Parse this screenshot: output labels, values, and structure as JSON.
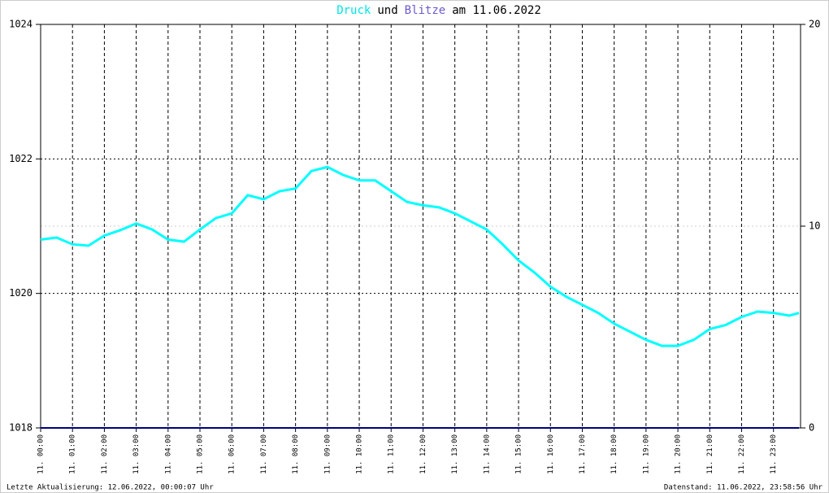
{
  "chart_data": {
    "type": "line",
    "title_parts": [
      {
        "text": "Druck",
        "color": "#00e5e5"
      },
      {
        "text": "und",
        "color": "#000000"
      },
      {
        "text": "Blitze",
        "color": "#6a5acd"
      },
      {
        "text": "am 11.06.2022",
        "color": "#000000"
      }
    ],
    "x": [
      0,
      0.5,
      1,
      1.5,
      2,
      2.5,
      3,
      3.5,
      4,
      4.5,
      5,
      5.5,
      6,
      6.5,
      7,
      7.5,
      8,
      8.5,
      9,
      9.5,
      10,
      10.5,
      11,
      11.5,
      12,
      12.5,
      13,
      13.5,
      14,
      14.5,
      15,
      15.5,
      16,
      16.5,
      17,
      17.5,
      18,
      18.5,
      19,
      19.5,
      20,
      20.5,
      21,
      21.5,
      22,
      22.5,
      23,
      23.5,
      23.8
    ],
    "series": [
      {
        "name": "Druck",
        "color": "#00ffff",
        "axis": "y",
        "values": [
          1020.8,
          1020.83,
          1020.73,
          1020.71,
          1020.86,
          1020.94,
          1021.04,
          1020.95,
          1020.8,
          1020.77,
          1020.95,
          1021.12,
          1021.19,
          1021.46,
          1021.4,
          1021.52,
          1021.56,
          1021.82,
          1021.88,
          1021.76,
          1021.68,
          1021.68,
          1021.52,
          1021.36,
          1021.31,
          1021.28,
          1021.19,
          1021.07,
          1020.95,
          1020.73,
          1020.49,
          1020.31,
          1020.1,
          1019.95,
          1019.83,
          1019.71,
          1019.55,
          1019.43,
          1019.31,
          1019.22,
          1019.22,
          1019.31,
          1019.47,
          1019.53,
          1019.65,
          1019.73,
          1019.71,
          1019.67,
          1019.71
        ]
      },
      {
        "name": "Blitze",
        "color": "#000080",
        "axis": "y2",
        "values": [
          0,
          0,
          0,
          0,
          0,
          0,
          0,
          0,
          0,
          0,
          0,
          0,
          0,
          0,
          0,
          0,
          0,
          0,
          0,
          0,
          0,
          0,
          0,
          0,
          0,
          0,
          0,
          0,
          0,
          0,
          0,
          0,
          0,
          0,
          0,
          0,
          0,
          0,
          0,
          0,
          0,
          0,
          0,
          0,
          0,
          0,
          0,
          0,
          0
        ]
      }
    ],
    "xlim": [
      0,
      23.85
    ],
    "xticks": [
      {
        "value": 0,
        "label": "11. 00:00"
      },
      {
        "value": 1,
        "label": "11. 01:00"
      },
      {
        "value": 2,
        "label": "11. 02:00"
      },
      {
        "value": 3,
        "label": "11. 03:00"
      },
      {
        "value": 4,
        "label": "11. 04:00"
      },
      {
        "value": 5,
        "label": "11. 05:00"
      },
      {
        "value": 6,
        "label": "11. 06:00"
      },
      {
        "value": 7,
        "label": "11. 07:00"
      },
      {
        "value": 8,
        "label": "11. 08:00"
      },
      {
        "value": 9,
        "label": "11. 09:00"
      },
      {
        "value": 10,
        "label": "11. 10:00"
      },
      {
        "value": 11,
        "label": "11. 11:00"
      },
      {
        "value": 12,
        "label": "11. 12:00"
      },
      {
        "value": 13,
        "label": "11. 13:00"
      },
      {
        "value": 14,
        "label": "11. 14:00"
      },
      {
        "value": 15,
        "label": "11. 15:00"
      },
      {
        "value": 16,
        "label": "11. 16:00"
      },
      {
        "value": 17,
        "label": "11. 17:00"
      },
      {
        "value": 18,
        "label": "11. 18:00"
      },
      {
        "value": 19,
        "label": "11. 19:00"
      },
      {
        "value": 20,
        "label": "11. 20:00"
      },
      {
        "value": 21,
        "label": "11. 21:00"
      },
      {
        "value": 22,
        "label": "11. 22:00"
      },
      {
        "value": 23,
        "label": "11. 23:00"
      }
    ],
    "ylim": [
      1018,
      1024
    ],
    "yticks": [
      1018,
      1020,
      1022,
      1024
    ],
    "y2lim": [
      0,
      20
    ],
    "y2ticks": [
      0,
      10,
      20
    ],
    "grid": true,
    "footer_left": "Letzte Aktualisierung: 12.06.2022, 00:00:07 Uhr",
    "footer_right": "Datenstand: 11.06.2022, 23:58:56 Uhr"
  }
}
